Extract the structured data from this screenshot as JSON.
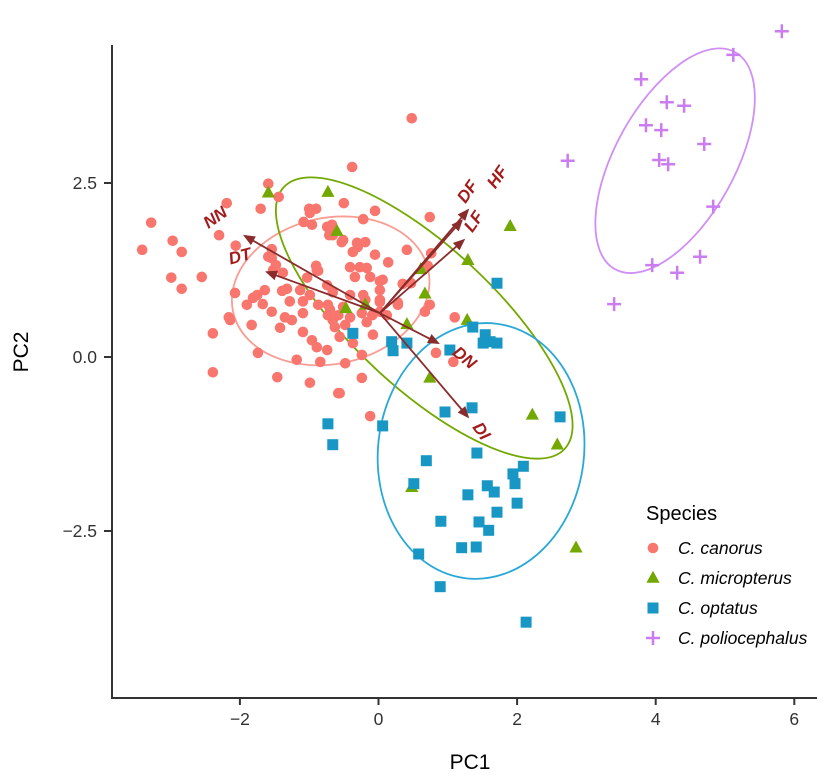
{
  "chart_data": {
    "type": "scatter",
    "title": "",
    "xlabel": "PC1",
    "ylabel": "PC2",
    "xlim": [
      -3.85,
      6.35
    ],
    "ylim": [
      -4.85,
      4.95
    ],
    "grid": false,
    "legend_title": "Species",
    "legend_position": "right-bottom-inside",
    "x_ticks": {
      "values": [
        -2,
        0,
        2,
        4,
        6
      ],
      "labels": [
        "−2",
        "0",
        "2",
        "4",
        "6"
      ]
    },
    "y_ticks": {
      "values": [
        2.5,
        0,
        -2.5
      ],
      "labels": [
        "2.5",
        "0.0",
        "−2.5"
      ]
    },
    "axis_color": "#333333",
    "series": [
      {
        "name": "C. canorus",
        "marker": "circle",
        "color": "#F8766D",
        "ellipse": {
          "center": [
            -0.69,
            0.95
          ],
          "rx": 1.44,
          "ry": 1.05,
          "rot": -12,
          "stroke": "#F99C94"
        },
        "points": [
          [
            -3.28,
            1.93
          ],
          [
            -3.41,
            1.54
          ],
          [
            -2.97,
            1.67
          ],
          [
            -2.84,
            1.51
          ],
          [
            -2.99,
            1.14
          ],
          [
            -2.84,
            0.98
          ],
          [
            -2.55,
            1.15
          ],
          [
            -2.19,
            2.21
          ],
          [
            -2.3,
            1.75
          ],
          [
            -2.06,
            1.6
          ],
          [
            -1.7,
            2.13
          ],
          [
            -1.59,
            2.49
          ],
          [
            -1.44,
            2.3
          ],
          [
            -1.08,
            1.94
          ],
          [
            -1.0,
            2.13
          ],
          [
            -0.9,
            2.13
          ],
          [
            -0.74,
            1.87
          ],
          [
            -0.71,
            1.75
          ],
          [
            -1.54,
            1.55
          ],
          [
            -1.48,
            1.32
          ],
          [
            -1.54,
            1.42
          ],
          [
            -1.32,
            0.98
          ],
          [
            -1.39,
            0.95
          ],
          [
            -1.09,
            0.8
          ],
          [
            -0.9,
            1.31
          ],
          [
            -0.87,
            1.24
          ],
          [
            -0.74,
            1.03
          ],
          [
            -0.66,
            0.93
          ],
          [
            -2.07,
            0.92
          ],
          [
            -1.81,
            0.85
          ],
          [
            -2.16,
            0.57
          ],
          [
            -2.39,
            0.34
          ],
          [
            -1.74,
            0.06
          ],
          [
            -2.39,
            -0.22
          ],
          [
            -2.14,
            0.53
          ],
          [
            -1.9,
            0.75
          ],
          [
            -1.67,
            0.76
          ],
          [
            -1.54,
            0.65
          ],
          [
            -1.83,
            0.46
          ],
          [
            -1.42,
            0.42
          ],
          [
            -1.25,
            0.53
          ],
          [
            -1.28,
            0.8
          ],
          [
            -1.09,
            0.63
          ],
          [
            -1.46,
            -0.29
          ],
          [
            -1.18,
            -0.04
          ],
          [
            -1.09,
            0.36
          ],
          [
            -0.96,
            0.24
          ],
          [
            -0.89,
            0.14
          ],
          [
            -0.99,
            -0.37
          ],
          [
            -0.84,
            -0.07
          ],
          [
            -0.74,
            0.1
          ],
          [
            -0.66,
            0.53
          ],
          [
            -0.73,
            0.6
          ],
          [
            -0.56,
            0.29
          ],
          [
            -0.58,
            -0.52
          ],
          [
            -0.12,
            -0.85
          ],
          [
            -1.35,
            0.57
          ],
          [
            0.48,
            3.43
          ],
          [
            -0.38,
            2.73
          ],
          [
            -0.5,
            2.21
          ],
          [
            -0.22,
            1.98
          ],
          [
            -0.05,
            2.1
          ],
          [
            -0.66,
            1.75
          ],
          [
            -0.51,
            1.68
          ],
          [
            -0.3,
            1.58
          ],
          [
            -0.05,
            1.47
          ],
          [
            0.14,
            1.36
          ],
          [
            0.41,
            1.54
          ],
          [
            0.74,
            2.01
          ],
          [
            0.76,
            1.49
          ],
          [
            0.71,
            1.31
          ],
          [
            0.35,
            1.05
          ],
          [
            0.47,
            1.06
          ],
          [
            0.02,
            1.09
          ],
          [
            -0.41,
            1.29
          ],
          [
            -0.27,
            1.29
          ],
          [
            -0.17,
            1.28
          ],
          [
            -0.34,
            1.15
          ],
          [
            -0.12,
            1.15
          ],
          [
            0.06,
            1.11
          ],
          [
            0.28,
            0.78
          ],
          [
            0.02,
            0.79
          ],
          [
            0.74,
            0.75
          ],
          [
            1.1,
            0.57
          ],
          [
            -0.7,
            0.68
          ],
          [
            -0.58,
            0.6
          ],
          [
            -0.51,
            0.72
          ],
          [
            -0.41,
            0.57
          ],
          [
            -0.48,
            0.46
          ],
          [
            -0.63,
            0.43
          ],
          [
            -0.24,
            0.63
          ],
          [
            -0.17,
            0.5
          ],
          [
            -0.09,
            0.6
          ],
          [
            0.02,
            0.65
          ],
          [
            0.12,
            0.6
          ],
          [
            0.28,
            0.75
          ],
          [
            0.67,
            0.65
          ],
          [
            -0.08,
            0.32
          ],
          [
            -0.19,
            0.82
          ],
          [
            0.02,
            0.82
          ],
          [
            -0.37,
            0.2
          ],
          [
            -0.24,
            0.03
          ],
          [
            -0.48,
            -0.09
          ],
          [
            -0.24,
            -0.3
          ],
          [
            -0.56,
            -0.52
          ],
          [
            -0.99,
            2.07
          ],
          [
            -0.96,
            1.9
          ],
          [
            -0.67,
            1.9
          ],
          [
            -0.7,
            1.78
          ],
          [
            -0.53,
            1.65
          ],
          [
            -0.31,
            1.64
          ],
          [
            -0.19,
            1.65
          ],
          [
            -0.37,
            1.51
          ],
          [
            -1.75,
            0.89
          ],
          [
            -1.64,
            0.96
          ],
          [
            -1.13,
            0.96
          ],
          [
            -0.99,
            0.89
          ],
          [
            -0.87,
            0.75
          ],
          [
            -0.73,
            0.75
          ],
          [
            -0.41,
            0.89
          ],
          [
            -0.22,
            0.89
          ],
          [
            0.02,
            0.96
          ],
          [
            -1.38,
            1.21
          ],
          [
            -1.52,
            1.25
          ],
          [
            -1.59,
            1.44
          ],
          [
            -1.03,
            1.14
          ],
          [
            -0.89,
            1.25
          ],
          [
            0.83,
            0.06
          ],
          [
            1.08,
            -0.07
          ]
        ]
      },
      {
        "name": "C. micropterus",
        "marker": "triangle",
        "color": "#72A800",
        "ellipse": {
          "center": [
            0.66,
            0.56
          ],
          "rx": 2.77,
          "ry": 1.01,
          "rot": 43,
          "stroke": "#72A800"
        },
        "points": [
          [
            -1.59,
            2.36
          ],
          [
            -0.73,
            2.37
          ],
          [
            -0.6,
            1.81
          ],
          [
            -0.47,
            0.7
          ],
          [
            -0.19,
            0.75
          ],
          [
            0.41,
            0.47
          ],
          [
            0.61,
            1.26
          ],
          [
            0.67,
            0.91
          ],
          [
            0.74,
            -0.3
          ],
          [
            1.28,
            0.53
          ],
          [
            1.29,
            1.39
          ],
          [
            1.9,
            1.88
          ],
          [
            2.22,
            -0.83
          ],
          [
            2.58,
            -1.26
          ],
          [
            2.85,
            -2.74
          ],
          [
            0.48,
            -1.87
          ]
        ]
      },
      {
        "name": "C. optatus",
        "marker": "square",
        "color": "#1897C5",
        "ellipse": {
          "center": [
            1.48,
            -1.35
          ],
          "rx": 1.85,
          "ry": 1.48,
          "rot": 97,
          "stroke": "#29A8D8"
        },
        "points": [
          [
            -0.37,
            0.34
          ],
          [
            0.19,
            0.22
          ],
          [
            0.21,
            0.09
          ],
          [
            0.41,
            0.2
          ],
          [
            1.03,
            0.1
          ],
          [
            1.36,
            0.43
          ],
          [
            1.54,
            0.32
          ],
          [
            1.51,
            0.2
          ],
          [
            1.61,
            0.22
          ],
          [
            1.71,
            0.2
          ],
          [
            1.71,
            1.06
          ],
          [
            -0.73,
            -0.96
          ],
          [
            0.06,
            -0.99
          ],
          [
            -0.66,
            -1.26
          ],
          [
            0.51,
            -1.82
          ],
          [
            0.96,
            -0.79
          ],
          [
            1.35,
            -0.73
          ],
          [
            1.42,
            -1.38
          ],
          [
            0.69,
            -1.49
          ],
          [
            1.57,
            -1.85
          ],
          [
            1.67,
            -1.94
          ],
          [
            1.29,
            -1.98
          ],
          [
            2.0,
            -2.1
          ],
          [
            1.71,
            -2.23
          ],
          [
            0.9,
            -2.36
          ],
          [
            1.45,
            -2.37
          ],
          [
            1.59,
            -2.49
          ],
          [
            1.2,
            -2.74
          ],
          [
            1.41,
            -2.73
          ],
          [
            0.58,
            -2.83
          ],
          [
            0.89,
            -3.3
          ],
          [
            2.13,
            -3.81
          ],
          [
            1.94,
            -1.68
          ],
          [
            2.09,
            -1.57
          ],
          [
            1.97,
            -1.82
          ],
          [
            2.62,
            -0.86
          ]
        ]
      },
      {
        "name": "C. poliocephalus",
        "marker": "plus",
        "color": "#CB7DF0",
        "ellipse": {
          "center": [
            4.28,
            2.82
          ],
          "rx": 1.79,
          "ry": 0.86,
          "rot": -61,
          "stroke": "#D08FF5"
        },
        "points": [
          [
            5.82,
            4.68
          ],
          [
            5.12,
            4.34
          ],
          [
            3.79,
            3.99
          ],
          [
            4.16,
            3.66
          ],
          [
            4.41,
            3.61
          ],
          [
            3.86,
            3.33
          ],
          [
            4.08,
            3.26
          ],
          [
            4.7,
            3.06
          ],
          [
            4.05,
            2.83
          ],
          [
            4.18,
            2.77
          ],
          [
            2.73,
            2.82
          ],
          [
            4.83,
            2.16
          ],
          [
            4.64,
            1.44
          ],
          [
            3.95,
            1.32
          ],
          [
            4.31,
            1.21
          ],
          [
            3.4,
            0.76
          ]
        ]
      }
    ],
    "loadings": {
      "origin": [
        0.02,
        0.63
      ],
      "arrow_color": "#8B2C2C",
      "label_color": "#A31C1C",
      "arrows": [
        {
          "label": "NN",
          "tip": [
            -1.93,
            1.74
          ],
          "label_pos": [
            -2.31,
            1.94
          ],
          "label_rot": -35
        },
        {
          "label": "DT",
          "tip": [
            -1.61,
            1.22
          ],
          "label_pos": [
            -1.98,
            1.37
          ],
          "label_rot": -15
        },
        {
          "label": "DF",
          "tip": [
            1.2,
            1.96
          ],
          "label_pos": [
            1.35,
            2.33
          ],
          "label_rot": -55
        },
        {
          "label": "HF",
          "tip": [
            1.29,
            2.11
          ],
          "label_pos": [
            1.78,
            2.54
          ],
          "label_rot": -55
        },
        {
          "label": "LF",
          "tip": [
            1.23,
            1.68
          ],
          "label_pos": [
            1.44,
            1.9
          ],
          "label_rot": -55
        },
        {
          "label": "DN",
          "tip": [
            0.86,
            0.2
          ],
          "label_pos": [
            1.19,
            -0.07
          ],
          "label_rot": 40
        },
        {
          "label": "DI",
          "tip": [
            1.29,
            -0.86
          ],
          "label_pos": [
            1.42,
            -1.11
          ],
          "label_rot": 55
        }
      ]
    }
  }
}
